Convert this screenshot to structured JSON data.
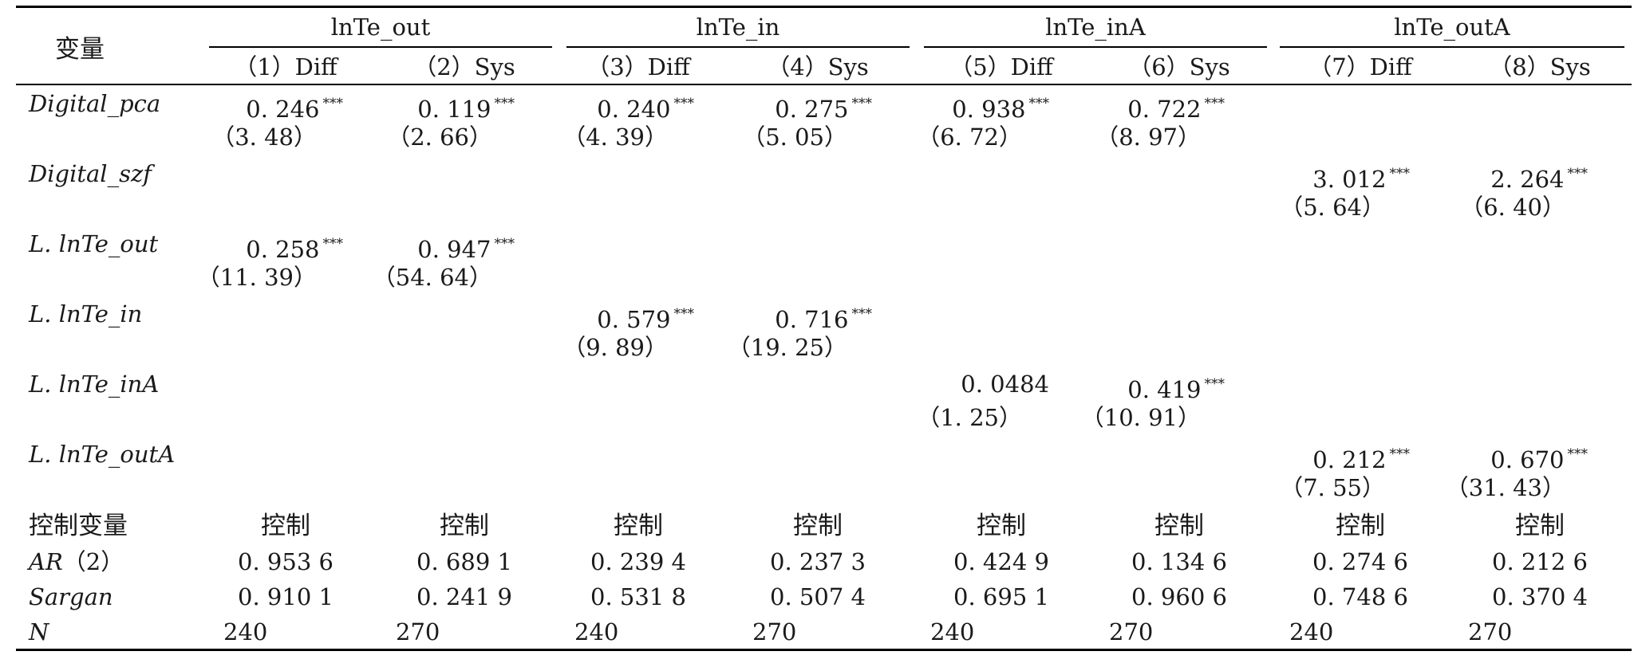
{
  "header": {
    "variable": "变量",
    "groups": [
      "lnTe_out",
      "lnTe_in",
      "lnTe_inA",
      "lnTe_outA"
    ],
    "columns": [
      "（1）Diff",
      "（2）Sys",
      "（3）Diff",
      "（4）Sys",
      "（5）Diff",
      "（6）Sys",
      "（7）Diff",
      "（8）Sys"
    ]
  },
  "star_mark": "***",
  "coef_rows": [
    {
      "label": "Digital_pca",
      "coefs": [
        "0. 246",
        "0. 119",
        "0. 240",
        "0. 275",
        "0. 938",
        "0. 722",
        "",
        ""
      ],
      "stars": [
        true,
        true,
        true,
        true,
        true,
        true,
        false,
        false
      ],
      "tstats": [
        "（3. 48）",
        "（2. 66）",
        "（4. 39）",
        "（5. 05）",
        "（6. 72）",
        "（8. 97）",
        "",
        ""
      ]
    },
    {
      "label": "Digital_szf",
      "coefs": [
        "",
        "",
        "",
        "",
        "",
        "",
        "3. 012",
        "2. 264"
      ],
      "stars": [
        false,
        false,
        false,
        false,
        false,
        false,
        true,
        true
      ],
      "tstats": [
        "",
        "",
        "",
        "",
        "",
        "",
        "（5. 64）",
        "（6. 40）"
      ]
    },
    {
      "label": "L. lnTe_out",
      "coefs": [
        "0. 258",
        "0. 947",
        "",
        "",
        "",
        "",
        "",
        ""
      ],
      "stars": [
        true,
        true,
        false,
        false,
        false,
        false,
        false,
        false
      ],
      "tstats": [
        "（11. 39）",
        "（54. 64）",
        "",
        "",
        "",
        "",
        "",
        ""
      ]
    },
    {
      "label": "L. lnTe_in",
      "coefs": [
        "",
        "",
        "0. 579",
        "0. 716",
        "",
        "",
        "",
        ""
      ],
      "stars": [
        false,
        false,
        true,
        true,
        false,
        false,
        false,
        false
      ],
      "tstats": [
        "",
        "",
        "（9. 89）",
        "（19. 25）",
        "",
        "",
        "",
        ""
      ]
    },
    {
      "label": "L. lnTe_inA",
      "coefs": [
        "",
        "",
        "",
        "",
        "0. 0484",
        "0. 419",
        "",
        ""
      ],
      "stars": [
        false,
        false,
        false,
        false,
        false,
        true,
        false,
        false
      ],
      "tstats": [
        "",
        "",
        "",
        "",
        "（1. 25）",
        "（10. 91）",
        "",
        ""
      ]
    },
    {
      "label": "L. lnTe_outA",
      "coefs": [
        "",
        "",
        "",
        "",
        "",
        "",
        "0. 212",
        "0. 670"
      ],
      "stars": [
        false,
        false,
        false,
        false,
        false,
        false,
        true,
        true
      ],
      "tstats": [
        "",
        "",
        "",
        "",
        "",
        "",
        "（7. 55）",
        "（31. 43）"
      ]
    }
  ],
  "summary_rows": [
    {
      "label": "控制变量",
      "italic": false,
      "values": [
        "控制",
        "控制",
        "控制",
        "控制",
        "控制",
        "控制",
        "控制",
        "控制"
      ]
    },
    {
      "label": "AR",
      "label_suffix": "（2）",
      "italic": true,
      "values": [
        "0. 953 6",
        "0. 689 1",
        "0. 239 4",
        "0. 237 3",
        "0. 424 9",
        "0. 134 6",
        "0. 274 6",
        "0. 212 6"
      ]
    },
    {
      "label": "Sargan",
      "italic": true,
      "values": [
        "0. 910 1",
        "0. 241 9",
        "0. 531 8",
        "0. 507 4",
        "0. 695 1",
        "0. 960 6",
        "0. 748 6",
        "0. 370 4"
      ]
    },
    {
      "label": "N",
      "italic": true,
      "left_aligned": true,
      "values": [
        "240",
        "270",
        "240",
        "270",
        "240",
        "270",
        "240",
        "270"
      ]
    }
  ]
}
